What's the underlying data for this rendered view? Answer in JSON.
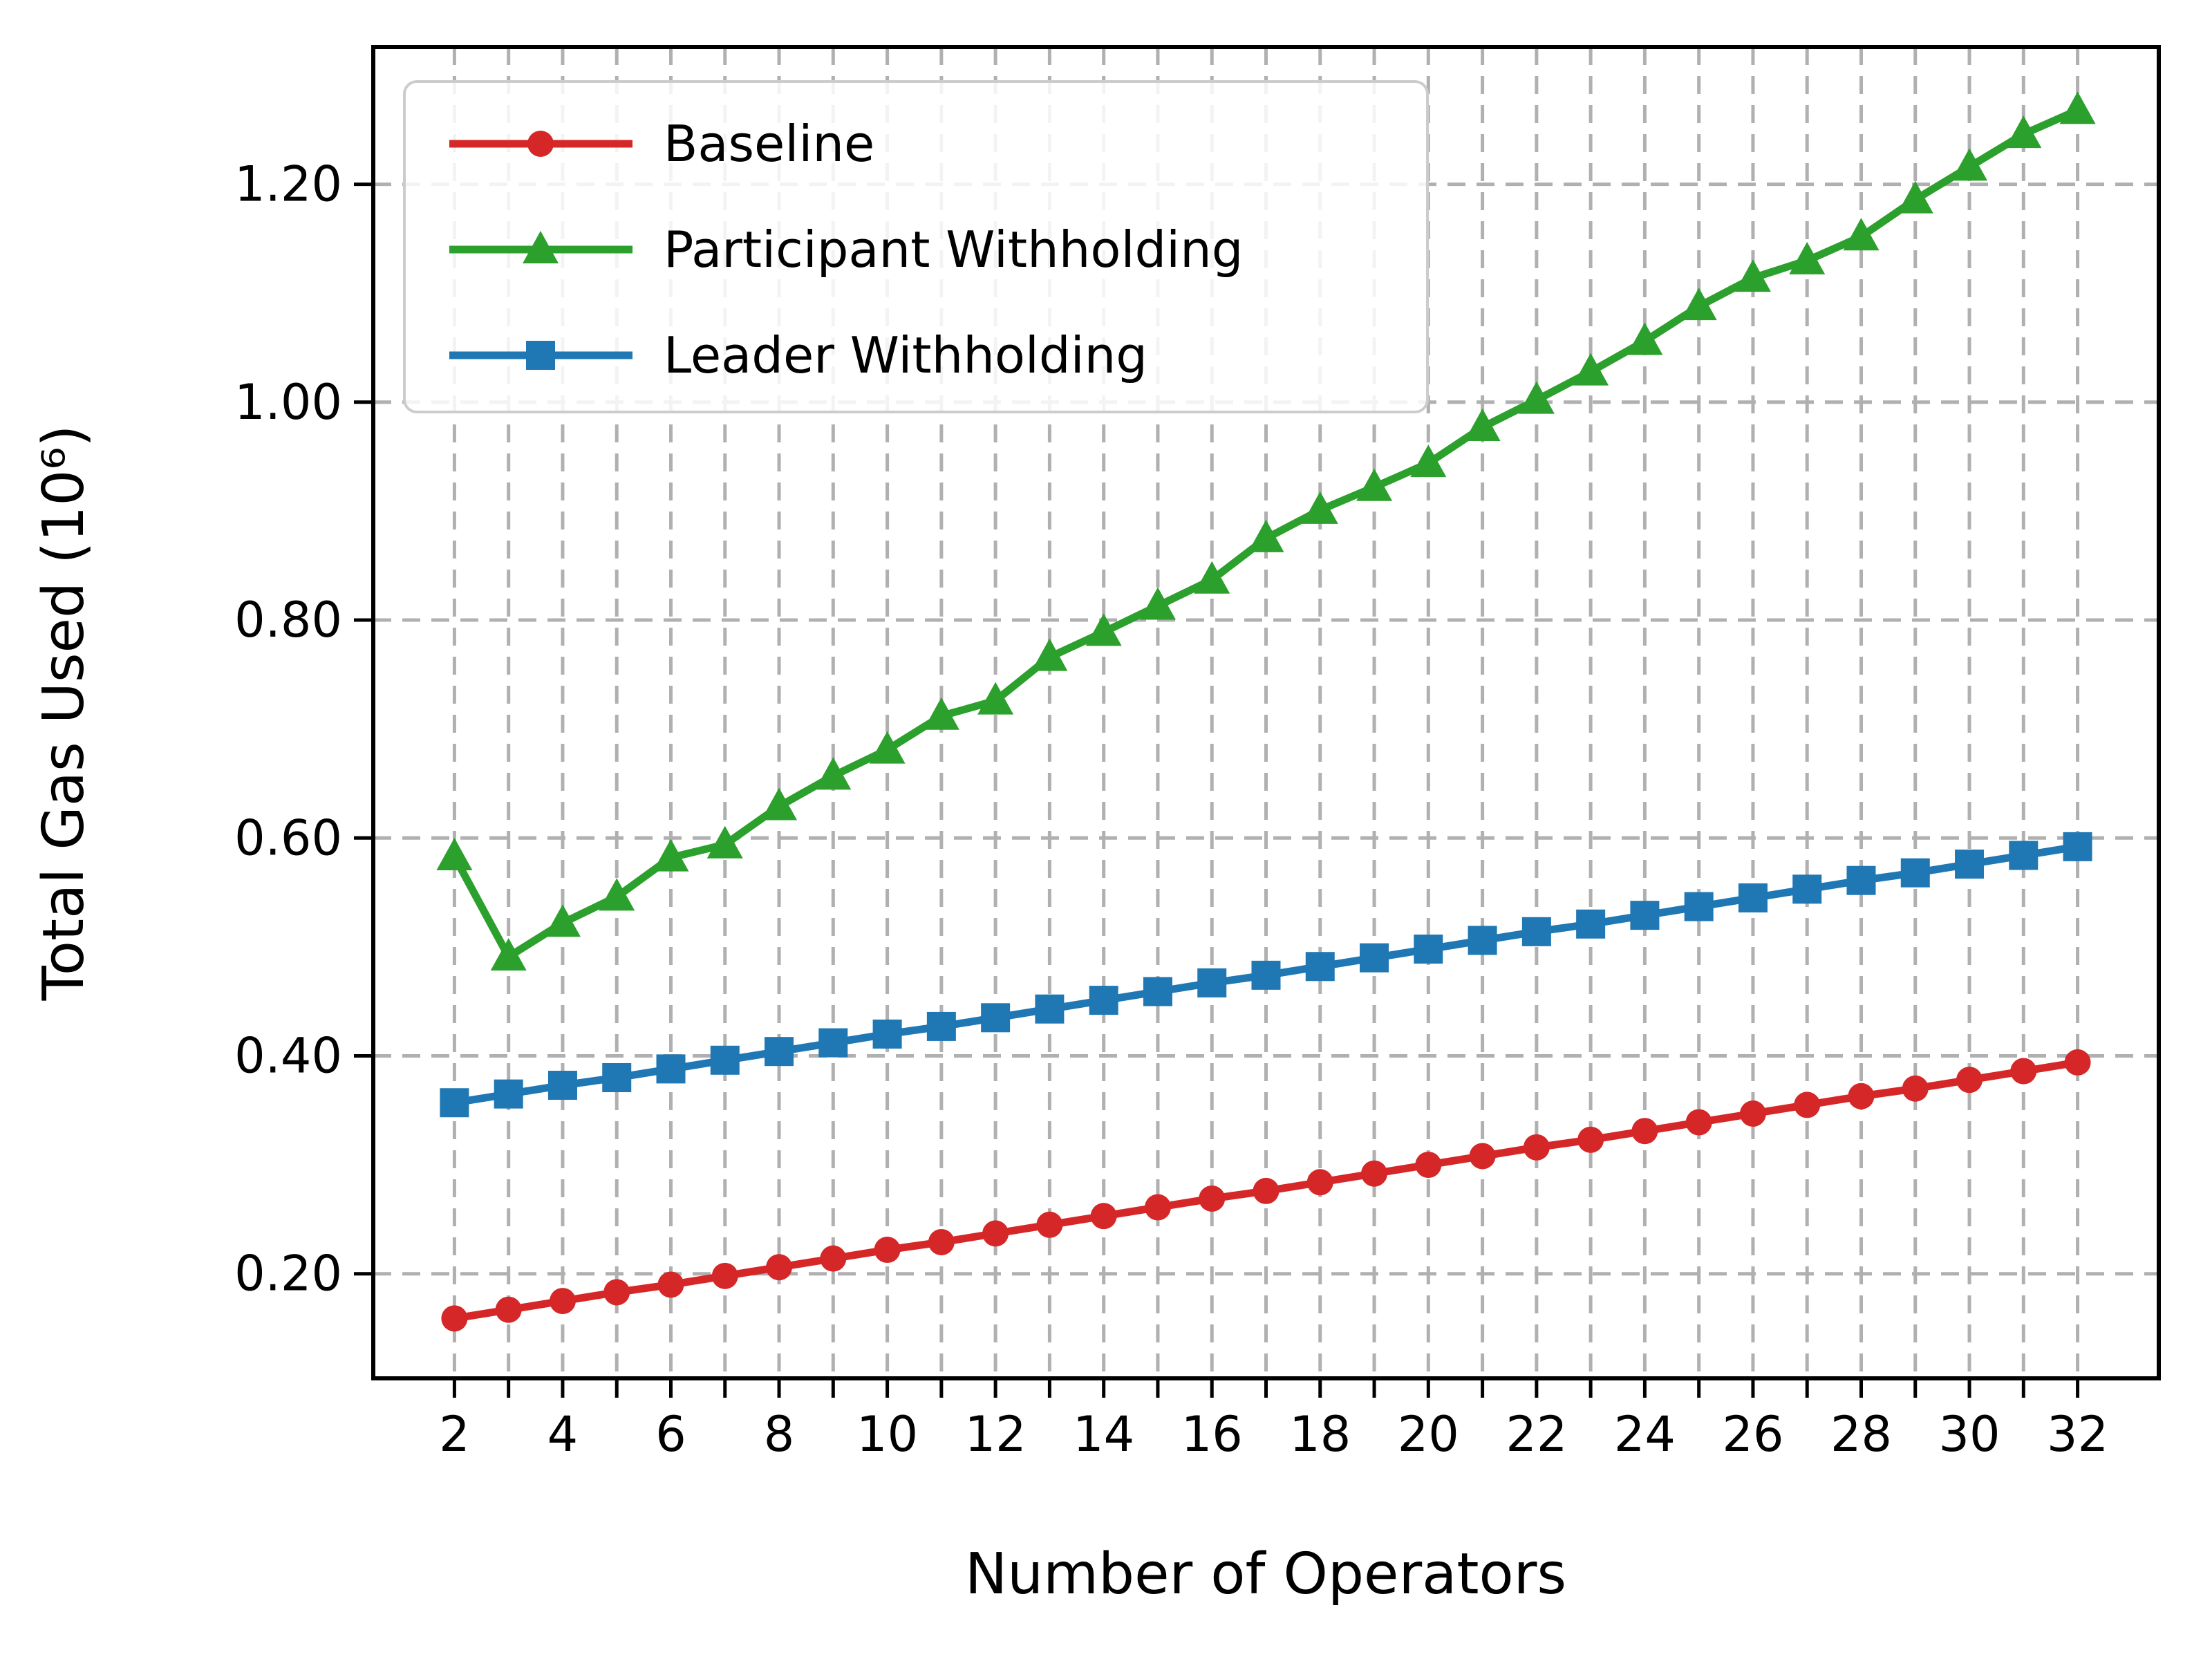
{
  "chart_data": {
    "type": "line",
    "xlabel": "Number of Operators",
    "ylabel": "Total Gas Used (10⁶)",
    "x": [
      2,
      3,
      4,
      5,
      6,
      7,
      8,
      9,
      10,
      11,
      12,
      13,
      14,
      15,
      16,
      17,
      18,
      19,
      20,
      21,
      22,
      23,
      24,
      25,
      26,
      27,
      28,
      29,
      30,
      31,
      32
    ],
    "series": [
      {
        "name": "Baseline",
        "color": "#d62728",
        "marker": "circle",
        "values": [
          0.159,
          0.167,
          0.175,
          0.183,
          0.19,
          0.198,
          0.206,
          0.214,
          0.222,
          0.229,
          0.237,
          0.245,
          0.253,
          0.261,
          0.269,
          0.276,
          0.284,
          0.292,
          0.3,
          0.308,
          0.316,
          0.323,
          0.331,
          0.339,
          0.347,
          0.355,
          0.363,
          0.37,
          0.378,
          0.386,
          0.394
        ]
      },
      {
        "name": "Participant Withholding",
        "color": "#2ca02c",
        "marker": "triangle",
        "values": [
          0.583,
          0.491,
          0.522,
          0.546,
          0.582,
          0.594,
          0.629,
          0.657,
          0.681,
          0.712,
          0.726,
          0.766,
          0.789,
          0.813,
          0.837,
          0.875,
          0.901,
          0.922,
          0.944,
          0.977,
          1.002,
          1.028,
          1.056,
          1.088,
          1.114,
          1.13,
          1.152,
          1.186,
          1.216,
          1.246,
          1.268
        ]
      },
      {
        "name": "Leader Withholding",
        "color": "#1f77b4",
        "marker": "square",
        "values": [
          0.357,
          0.365,
          0.373,
          0.38,
          0.388,
          0.396,
          0.404,
          0.412,
          0.42,
          0.427,
          0.435,
          0.443,
          0.451,
          0.459,
          0.467,
          0.474,
          0.482,
          0.49,
          0.498,
          0.506,
          0.514,
          0.521,
          0.529,
          0.537,
          0.545,
          0.553,
          0.561,
          0.568,
          0.576,
          0.584,
          0.592
        ]
      }
    ],
    "xticks_labeled": [
      2,
      4,
      6,
      8,
      10,
      12,
      14,
      16,
      18,
      20,
      22,
      24,
      26,
      28,
      30,
      32
    ],
    "xticks_minor_step": 1,
    "yticks": [
      "0.20",
      "0.40",
      "0.60",
      "0.80",
      "1.00",
      "1.20"
    ],
    "ytick_values": [
      0.2,
      0.4,
      0.6,
      0.8,
      1.0,
      1.2
    ],
    "xlim": [
      0.5,
      33.5
    ],
    "ylim": [
      0.104,
      1.326
    ],
    "grid": true,
    "grid_color": "#b0b0b0",
    "spine_color": "#000000",
    "background": "#ffffff",
    "legend_position": "upper left",
    "legend_labels": [
      "Baseline",
      "Participant Withholding",
      "Leader Withholding"
    ]
  }
}
